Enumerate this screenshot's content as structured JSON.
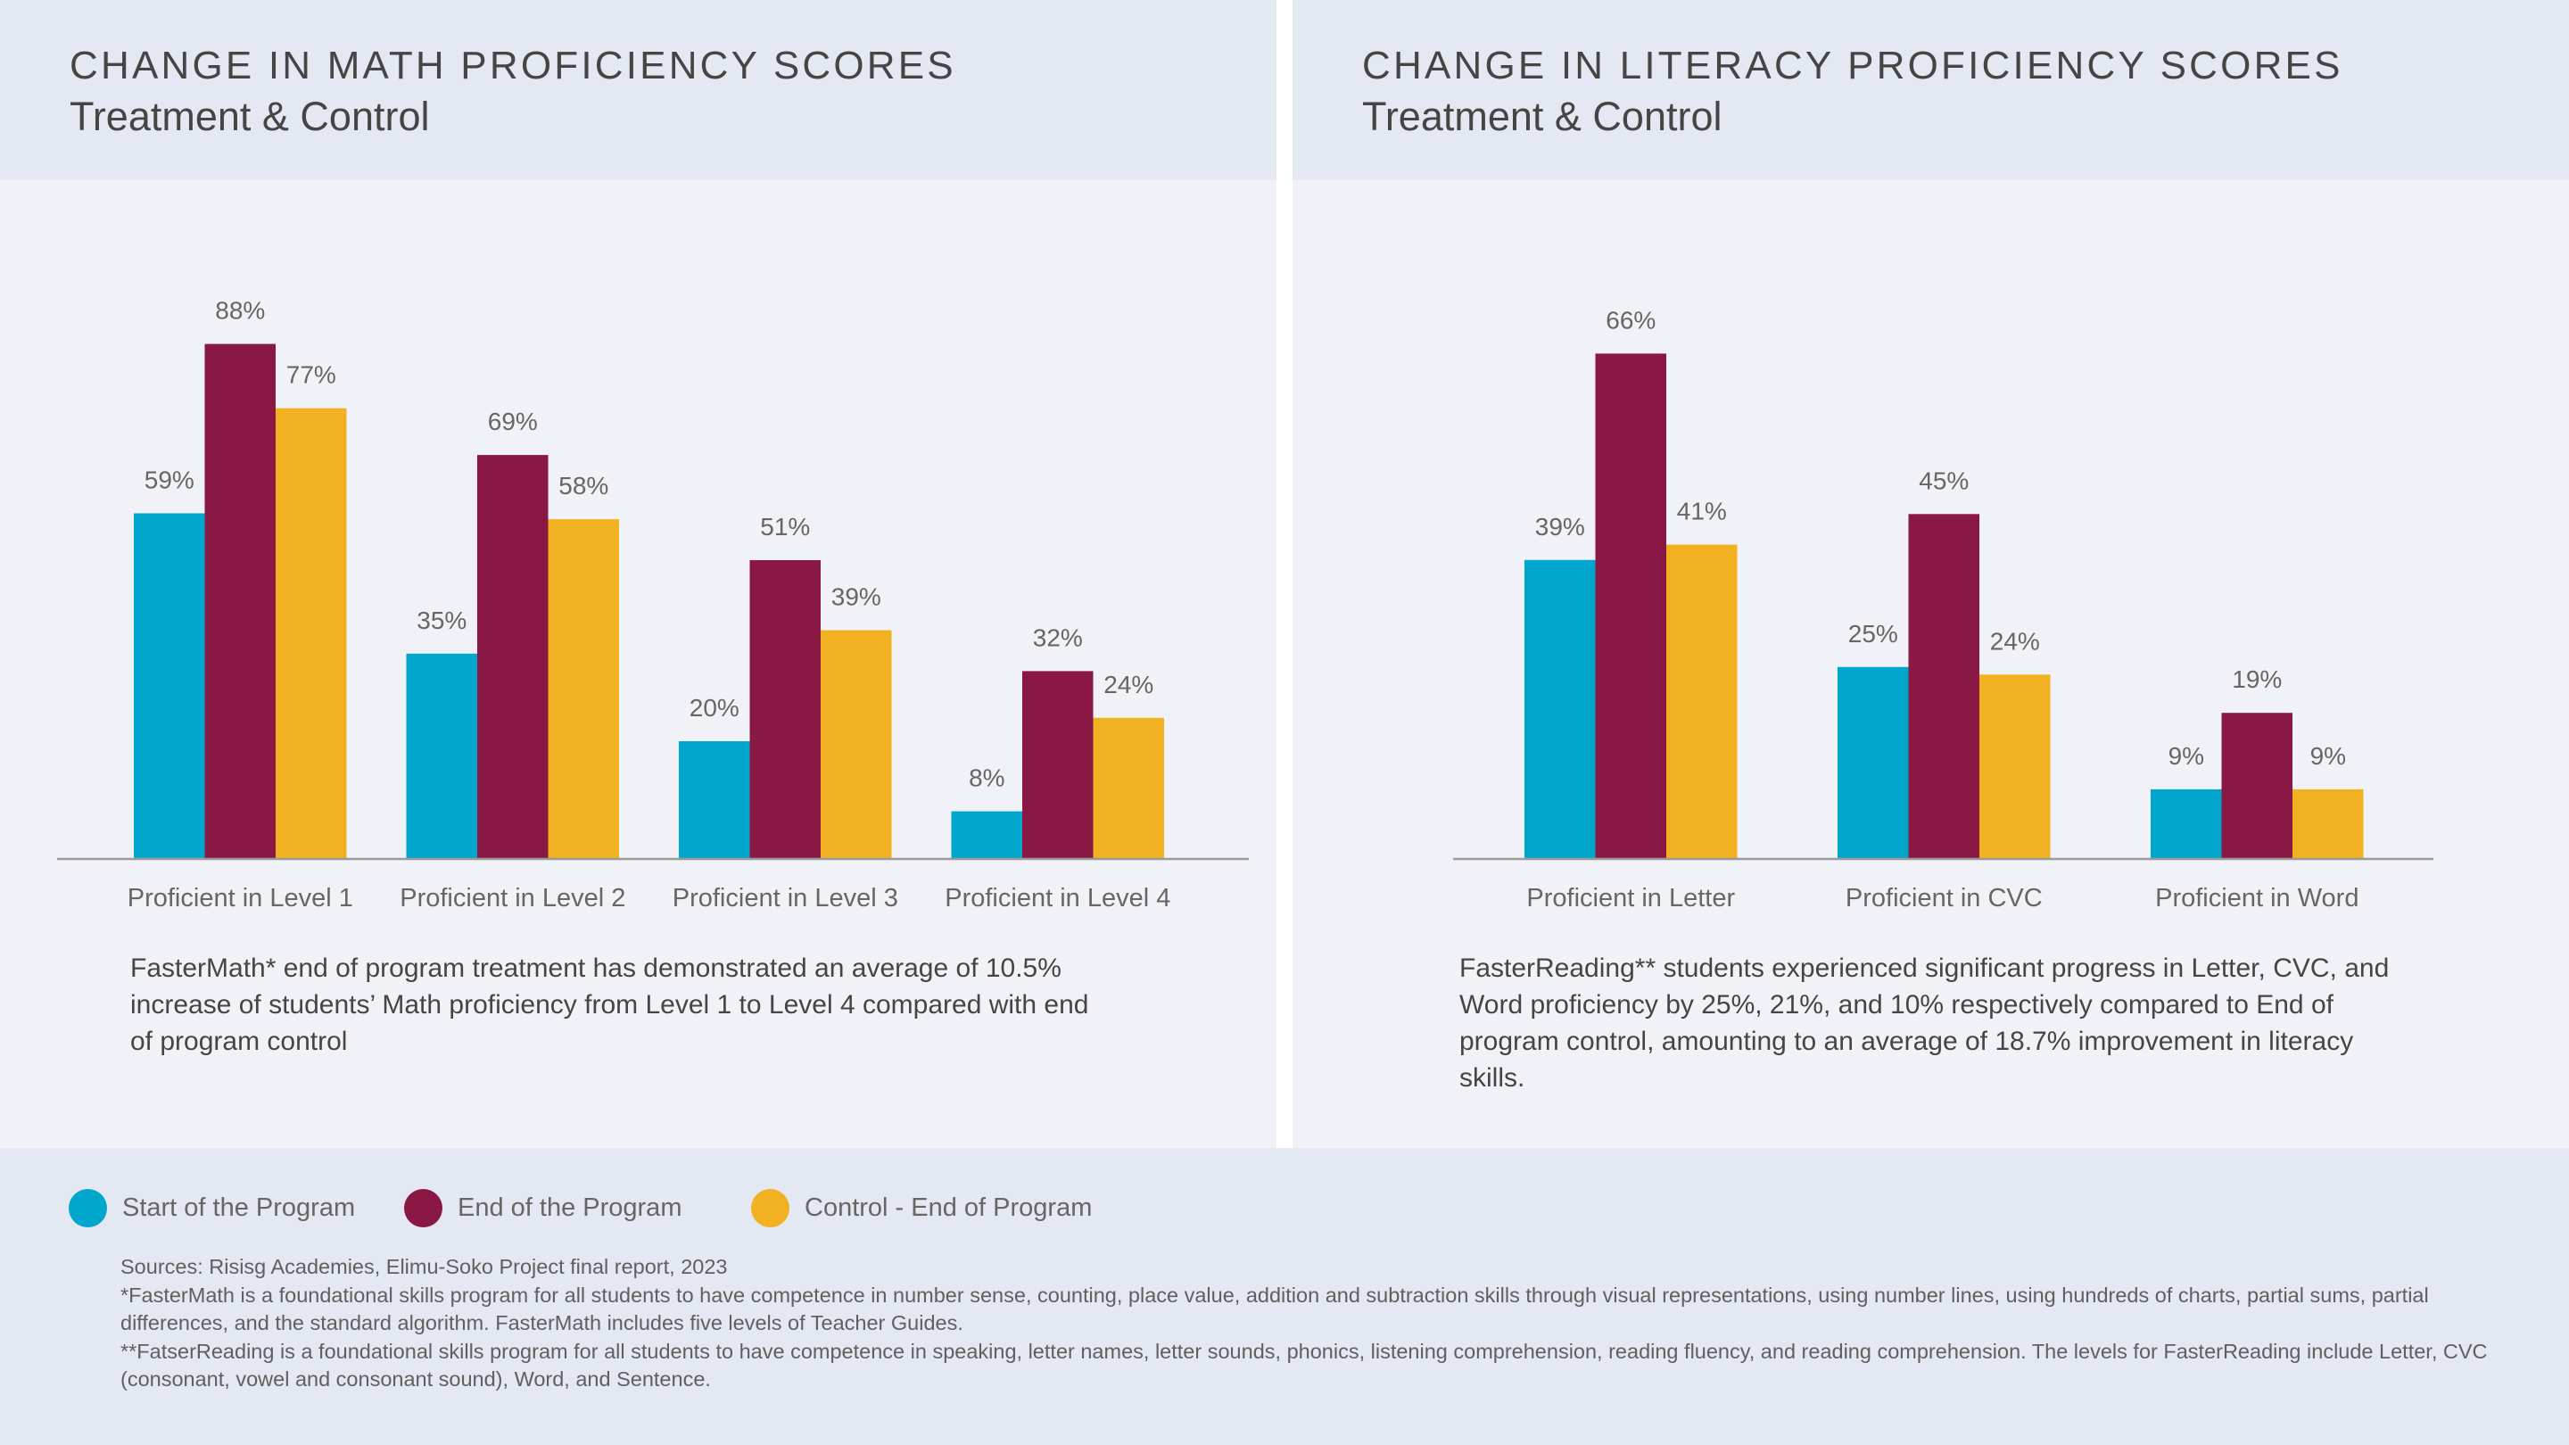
{
  "colors": {
    "start": "#00a6cc",
    "end": "#8a1845",
    "control": "#f2b120",
    "axis": "#9a9a9a",
    "label": "#666666"
  },
  "panels": {
    "math": {
      "title": "CHANGE IN MATH PROFICIENCY SCORES",
      "subtitle": "Treatment & Control",
      "description": "FasterMath* end of program treatment has demonstrated an average of 10.5% increase of students’ Math proficiency from Level 1 to Level 4 compared with end of program control"
    },
    "literacy": {
      "title": "CHANGE IN LITERACY PROFICIENCY SCORES",
      "subtitle": "Treatment & Control",
      "description": "FasterReading** students experienced significant progress in Letter, CVC, and Word proficiency by 25%, 21%, and 10% respectively compared to End of program control, amounting to an average of 18.7% improvement in literacy skills."
    }
  },
  "legend": {
    "items": [
      {
        "label": "Start of the Program",
        "color": "#00a6cc"
      },
      {
        "label": "End of the Program",
        "color": "#8a1845"
      },
      {
        "label": "Control - End of Program",
        "color": "#f2b120"
      }
    ]
  },
  "footer": {
    "sources": "Sources: Risisg Academies, Elimu-Soko Project final report, 2023",
    "note_math": "*FasterMath is a foundational skills program for all students to have competence in number sense, counting, place value, addition and subtraction skills through visual representations, using number lines, using hundreds of charts, partial sums, partial differences, and the standard algorithm. FasterMath includes five levels of Teacher Guides.",
    "note_reading": "**FatserReading is a foundational skills program for all students to have competence in speaking, letter names, letter sounds, phonics, listening comprehension, reading fluency, and reading comprehension. The levels for FasterReading include Letter, CVC (consonant, vowel and consonant sound), Word, and Sentence."
  },
  "chart_data": [
    {
      "type": "bar",
      "title": "CHANGE IN MATH PROFICIENCY SCORES",
      "subtitle": "Treatment & Control",
      "xlabel": "",
      "ylabel": "",
      "unit": "%",
      "grid": false,
      "legend": "bottom-left",
      "categories": [
        "Proficient in Level 1",
        "Proficient in Level 2",
        "Proficient in Level 3",
        "Proficient in Level 4"
      ],
      "series": [
        {
          "name": "Start of the Program",
          "values": [
            59,
            35,
            20,
            8
          ],
          "labels": [
            "59%",
            "35%",
            "20%",
            "8%"
          ]
        },
        {
          "name": "End of the Program",
          "values": [
            88,
            69,
            51,
            32
          ],
          "labels": [
            "88%",
            "69%",
            "51%",
            "32%"
          ]
        },
        {
          "name": "Control - End of Program",
          "values": [
            77,
            58,
            39,
            24
          ],
          "labels": [
            "77%",
            "58%",
            "39%",
            "24%"
          ]
        }
      ],
      "ylim": [
        0,
        100
      ]
    },
    {
      "type": "bar",
      "title": "CHANGE IN LITERACY PROFICIENCY SCORES",
      "subtitle": "Treatment & Control",
      "xlabel": "",
      "ylabel": "",
      "unit": "%",
      "grid": false,
      "legend": "bottom-left",
      "categories": [
        "Proficient in Letter",
        "Proficient in CVC",
        "Proficient in Word"
      ],
      "series": [
        {
          "name": "Start of the Program",
          "values": [
            39,
            25,
            9
          ],
          "labels": [
            "39%",
            "25%",
            "9%"
          ]
        },
        {
          "name": "End of the Program",
          "values": [
            66,
            45,
            19
          ],
          "labels": [
            "66%",
            "45%",
            "19%"
          ]
        },
        {
          "name": "Control - End of Program",
          "values": [
            41,
            24,
            9
          ],
          "labels": [
            "41%",
            "24%",
            "9%"
          ]
        }
      ],
      "ylim": [
        0,
        76
      ]
    }
  ]
}
